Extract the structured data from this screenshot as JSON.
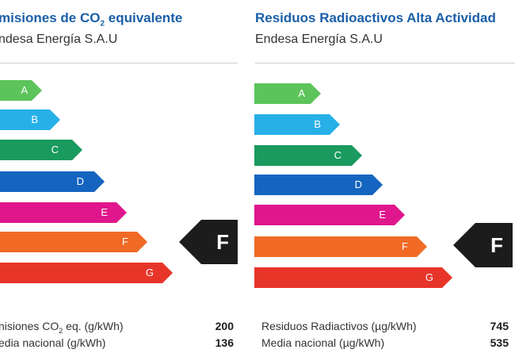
{
  "left": {
    "title_prefix": "misiones de CO",
    "title_sub": "2",
    "title_suffix": " equivalente",
    "company": "ndesa Energía S.A.U",
    "rating": "F",
    "rows": [
      {
        "label_prefix": "nisiones CO",
        "label_sub": "2",
        "label_suffix": " eq. (g/kWh)",
        "value": "200"
      },
      {
        "label": "edia nacional (g/kWh)",
        "value": "136"
      }
    ]
  },
  "right": {
    "title": "Residuos Radioactivos Alta Actividad",
    "company": "Endesa Energía S.A.U",
    "rating": "F",
    "rows": [
      {
        "label": "Residuos Radiactivos (µg/kWh)",
        "value": "745"
      },
      {
        "label": "Media nacional (µg/kWh)",
        "value": "535"
      }
    ]
  },
  "classes": [
    "A",
    "B",
    "C",
    "D",
    "E",
    "F",
    "G"
  ],
  "class_colors": [
    "#5cc45b",
    "#27b0e8",
    "#1a9a5e",
    "#1565c0",
    "#e0168c",
    "#f06a25",
    "#e8352a"
  ]
}
